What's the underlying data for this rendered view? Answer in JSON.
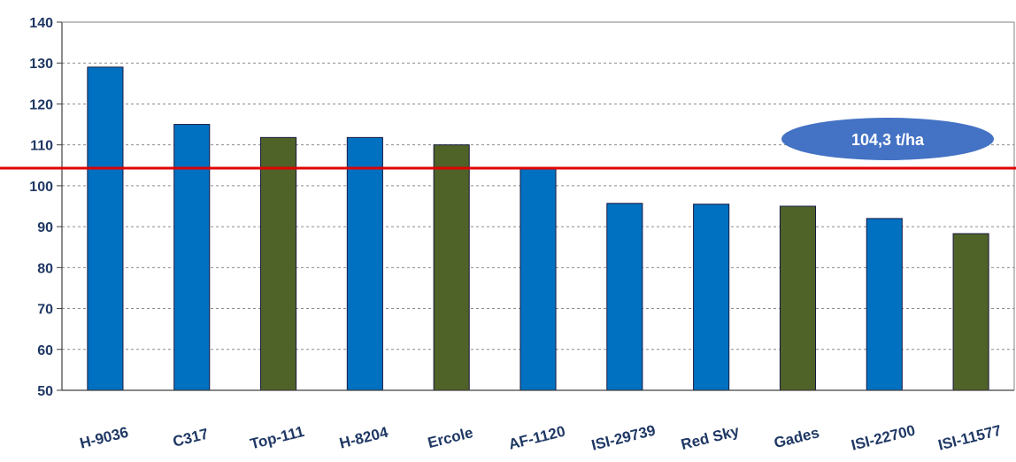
{
  "chart_data": {
    "type": "bar",
    "categories": [
      "H-9036",
      "C317",
      "Top-111",
      "H-8204",
      "Ercole",
      "AF-1120",
      "ISI-29739",
      "Red Sky",
      "Gades",
      "ISI-22700",
      "ISI-11577"
    ],
    "values": [
      129,
      115,
      111.8,
      111.8,
      110,
      104.3,
      95.7,
      95.5,
      95,
      92,
      88.3
    ],
    "bar_color_groups": [
      "blue",
      "blue",
      "green",
      "blue",
      "green",
      "blue",
      "blue",
      "blue",
      "green",
      "blue",
      "green"
    ],
    "colors": {
      "blue": "#0070c0",
      "green": "#4f6228",
      "reference_line": "#e00000",
      "badge": "#4472c4"
    },
    "ylim": [
      50,
      140
    ],
    "yticks": [
      50,
      60,
      70,
      80,
      90,
      100,
      110,
      120,
      130,
      140
    ],
    "grid": true,
    "reference_line": {
      "value": 104.3,
      "label": "104,3 t/ha"
    },
    "title": "",
    "xlabel": "",
    "ylabel": ""
  }
}
